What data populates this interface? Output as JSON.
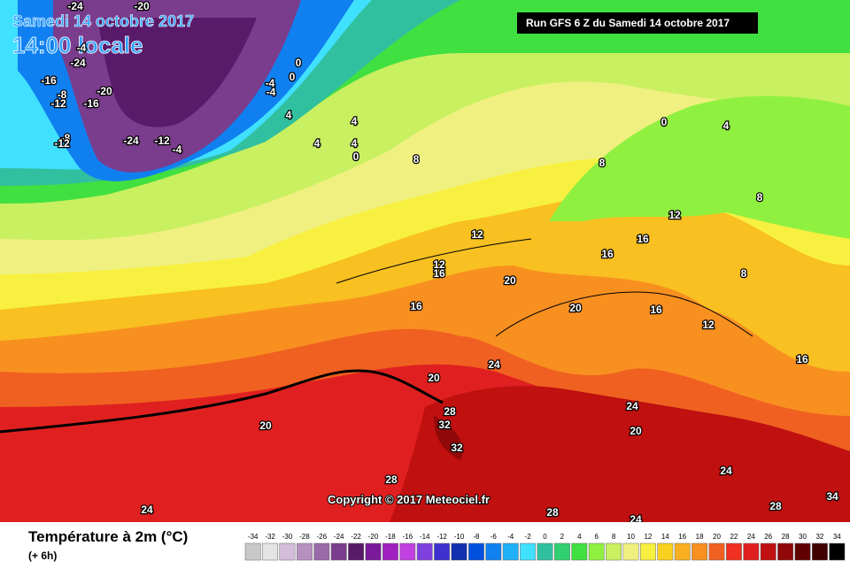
{
  "header": {
    "date": "Samedi 14 octobre 2017",
    "time": "14:00 locale",
    "run": "Run GFS 6 Z du Samedi 14 octobre 2017"
  },
  "copyright": "Copyright © 2017 Meteociel.fr",
  "map_labels": [
    -24,
    -20,
    -4,
    -24,
    -16,
    -8,
    -12,
    -20,
    -16,
    -8,
    -12,
    -24,
    -12,
    -4,
    0,
    0,
    -4,
    -4,
    4,
    4,
    4,
    4,
    0,
    8,
    0,
    4,
    8,
    12,
    8,
    16,
    16,
    12,
    12,
    16,
    20,
    16,
    20,
    16,
    24,
    20,
    20,
    28,
    32,
    32,
    28,
    24,
    28,
    24,
    28,
    34,
    24,
    20,
    24,
    16,
    12,
    8
  ],
  "legend": {
    "title": "Température à 2m (°C)",
    "subtitle": "(+ 6h)",
    "values": [
      -34,
      -32,
      -30,
      -28,
      -26,
      -24,
      -22,
      -20,
      -18,
      -16,
      -14,
      -12,
      -10,
      -8,
      -6,
      -4,
      -2,
      0,
      2,
      4,
      6,
      8,
      10,
      12,
      14,
      16,
      18,
      20,
      22,
      24,
      26,
      28,
      30,
      32,
      34
    ],
    "colors": [
      "#c8c8c8",
      "#e4e4e4",
      "#d4bcdc",
      "#b890c0",
      "#9a6aa8",
      "#7a3c8c",
      "#5a1a6a",
      "#7a1a9a",
      "#a020c0",
      "#c040e0",
      "#8040e0",
      "#4030d0",
      "#1030b0",
      "#0050e0",
      "#1080f0",
      "#20b0f8",
      "#40e0ff",
      "#30c0a0",
      "#30d070",
      "#40e040",
      "#90f040",
      "#c8f060",
      "#f0f080",
      "#f8f040",
      "#f8d020",
      "#f8b020",
      "#f89020",
      "#f06020",
      "#f03020",
      "#e02020",
      "#c01010",
      "#900808",
      "#600000",
      "#400000",
      "#000000"
    ]
  }
}
